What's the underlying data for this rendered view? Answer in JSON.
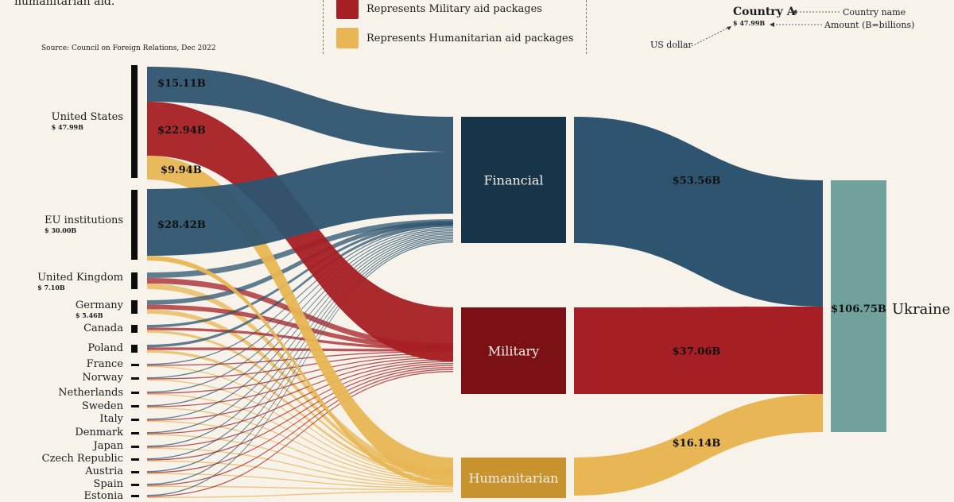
{
  "intro_text": "humanitarian aid.",
  "source": "Source: Council on Foreign Relations, Dec 2022",
  "legend": {
    "military": "Represents Military aid packages",
    "humanitarian": "Represents Humanitarian aid packages"
  },
  "key": {
    "country_title": "Country A",
    "country_amount": "$ 47.99B",
    "country_name_label": "Country name",
    "amount_label": "Amount (B=billions)",
    "us_dollar_label": "US dollar"
  },
  "colors": {
    "financial": "#2e5470",
    "military": "#a51f24",
    "humanitarian": "#e8b654",
    "ukraine": "#70a29b",
    "financial_node": "#173548",
    "military_node": "#7c1115",
    "humanitarian_node": "#c99330"
  },
  "chart_data": {
    "type": "sankey",
    "source_countries": [
      {
        "name": "United States",
        "amount": "$ 47.99B"
      },
      {
        "name": "EU institutions",
        "amount": "$ 30.00B"
      },
      {
        "name": "United Kingdom",
        "amount": "$ 7.10B"
      },
      {
        "name": "Germany",
        "amount": "$ 5.46B"
      },
      {
        "name": "Canada",
        "amount": ""
      },
      {
        "name": "Poland",
        "amount": ""
      },
      {
        "name": "France",
        "amount": ""
      },
      {
        "name": "Norway",
        "amount": ""
      },
      {
        "name": "Netherlands",
        "amount": ""
      },
      {
        "name": "Sweden",
        "amount": ""
      },
      {
        "name": "Italy",
        "amount": ""
      },
      {
        "name": "Denmark",
        "amount": ""
      },
      {
        "name": "Japan",
        "amount": ""
      },
      {
        "name": "Czech Republic",
        "amount": ""
      },
      {
        "name": "Austria",
        "amount": ""
      },
      {
        "name": "Spain",
        "amount": ""
      },
      {
        "name": "Estonia",
        "amount": ""
      }
    ],
    "categories": [
      "Financial",
      "Military",
      "Humanitarian"
    ],
    "target": "Ukraine",
    "flow_labels": {
      "us_financial": "$15.11B",
      "us_military": "$22.94B",
      "us_humanitarian": "$9.94B",
      "eu_financial": "$28.42B"
    },
    "category_totals": {
      "Financial": 53.56,
      "Military": 37.06,
      "Humanitarian": 16.14
    },
    "category_labels": {
      "Financial": "$53.56B",
      "Military": "$37.06B",
      "Humanitarian": "$16.14B"
    },
    "total": 106.75,
    "total_label": "$106.75B"
  }
}
